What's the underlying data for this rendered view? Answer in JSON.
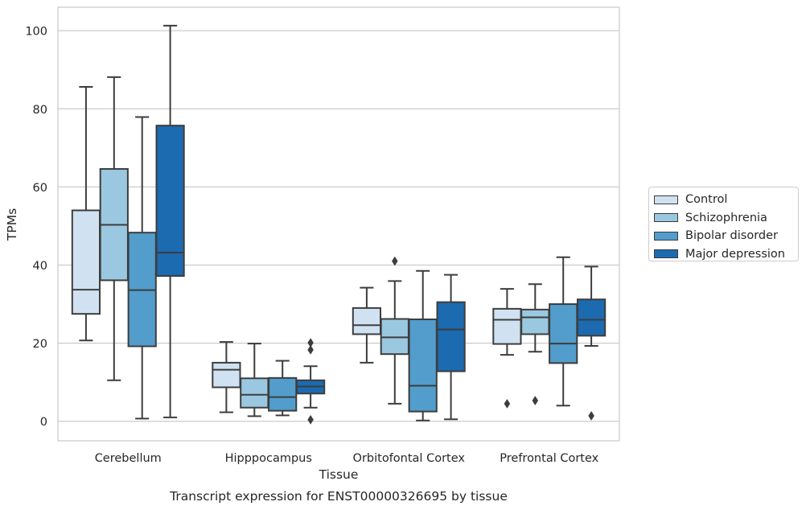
{
  "chart_data": {
    "type": "box",
    "title": "",
    "caption": "Transcript expression for ENST00000326695 by tissue",
    "xlabel": "Tissue",
    "ylabel": "TPMs",
    "ylim": [
      -5,
      106
    ],
    "yticks": [
      0,
      20,
      40,
      60,
      80,
      100
    ],
    "grid": "horizontal",
    "legend_position": "right",
    "categories": [
      "Cerebellum",
      "Hipppocampus",
      "Orbitofontal Cortex",
      "Prefrontal Cortex"
    ],
    "series": [
      {
        "name": "Control",
        "color": "#d0e2f2",
        "boxes": [
          {
            "whisker_low": 20.7,
            "q1": 27.5,
            "median": 33.7,
            "q3": 54.0,
            "whisker_high": 85.6,
            "outliers": []
          },
          {
            "whisker_low": 2.3,
            "q1": 8.7,
            "median": 13.2,
            "q3": 15.0,
            "whisker_high": 20.3,
            "outliers": []
          },
          {
            "whisker_low": 15.0,
            "q1": 22.3,
            "median": 24.6,
            "q3": 29.0,
            "whisker_high": 34.2,
            "outliers": []
          },
          {
            "whisker_low": 17.0,
            "q1": 19.8,
            "median": 26.0,
            "q3": 28.8,
            "whisker_high": 33.9,
            "outliers": [
              4.5
            ]
          }
        ]
      },
      {
        "name": "Schizophrenia",
        "color": "#9ac8e0",
        "boxes": [
          {
            "whisker_low": 10.5,
            "q1": 36.1,
            "median": 50.3,
            "q3": 64.6,
            "whisker_high": 88.1,
            "outliers": []
          },
          {
            "whisker_low": 1.3,
            "q1": 3.5,
            "median": 6.8,
            "q3": 11.0,
            "whisker_high": 19.9,
            "outliers": []
          },
          {
            "whisker_low": 4.5,
            "q1": 17.2,
            "median": 21.5,
            "q3": 26.2,
            "whisker_high": 35.9,
            "outliers": [
              41.0
            ]
          },
          {
            "whisker_low": 17.8,
            "q1": 22.3,
            "median": 26.6,
            "q3": 28.6,
            "whisker_high": 35.1,
            "outliers": [
              5.3
            ]
          }
        ]
      },
      {
        "name": "Bipolar disorder",
        "color": "#529dcc",
        "boxes": [
          {
            "whisker_low": 0.7,
            "q1": 19.2,
            "median": 33.6,
            "q3": 48.3,
            "whisker_high": 77.9,
            "outliers": []
          },
          {
            "whisker_low": 1.5,
            "q1": 2.7,
            "median": 6.2,
            "q3": 11.1,
            "whisker_high": 15.5,
            "outliers": []
          },
          {
            "whisker_low": 0.2,
            "q1": 2.5,
            "median": 9.1,
            "q3": 26.1,
            "whisker_high": 38.5,
            "outliers": []
          },
          {
            "whisker_low": 4.0,
            "q1": 14.9,
            "median": 19.9,
            "q3": 30.0,
            "whisker_high": 42.0,
            "outliers": []
          }
        ]
      },
      {
        "name": "Major depression",
        "color": "#1c6aaf",
        "boxes": [
          {
            "whisker_low": 1.0,
            "q1": 37.2,
            "median": 43.2,
            "q3": 75.7,
            "whisker_high": 101.3,
            "outliers": []
          },
          {
            "whisker_low": 3.5,
            "q1": 7.1,
            "median": 8.9,
            "q3": 10.5,
            "whisker_high": 14.1,
            "outliers": [
              0.4,
              18.3,
              20.1
            ]
          },
          {
            "whisker_low": 0.5,
            "q1": 12.8,
            "median": 23.5,
            "q3": 30.5,
            "whisker_high": 37.5,
            "outliers": []
          },
          {
            "whisker_low": 19.3,
            "q1": 21.9,
            "median": 26.0,
            "q3": 31.2,
            "whisker_high": 39.6,
            "outliers": [
              1.4
            ]
          }
        ]
      }
    ]
  }
}
